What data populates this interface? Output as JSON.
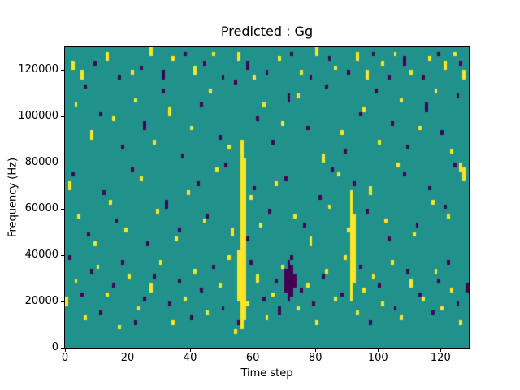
{
  "chart_data": {
    "type": "heatmap",
    "title": "Predicted : Gg",
    "xlabel": "Time step",
    "ylabel": "Frequency (Hz)",
    "x_range": [
      0,
      129
    ],
    "y_range": [
      0,
      130000
    ],
    "x_ticks": [
      0,
      20,
      40,
      60,
      80,
      100,
      120
    ],
    "y_ticks": [
      0,
      20000,
      40000,
      60000,
      80000,
      100000,
      120000
    ],
    "grid": {
      "cols": 129,
      "rows": 65,
      "cell_freq_hz": 2000,
      "gridlines": false,
      "legend": "none"
    },
    "colors": {
      "background_value_color": "#21918c",
      "high_value_color": "#fde725",
      "low_value_color": "#440154",
      "figure_bg": "#ffffff",
      "spine": "#000000"
    },
    "cells_note": "runs are [time_step, freq_bin_start, freq_bin_end] with freq bin = 2000 Hz, bin 0 at 0 Hz",
    "cells": {
      "yellow_runs": [
        [
          2,
          60,
          61
        ],
        [
          5,
          58,
          59
        ],
        [
          13,
          62,
          63
        ],
        [
          21,
          59,
          59
        ],
        [
          27,
          63,
          64
        ],
        [
          34,
          62,
          62
        ],
        [
          41,
          59,
          60
        ],
        [
          47,
          63,
          63
        ],
        [
          55,
          62,
          63
        ],
        [
          60,
          58,
          58
        ],
        [
          68,
          62,
          62
        ],
        [
          75,
          59,
          59
        ],
        [
          80,
          63,
          64
        ],
        [
          86,
          60,
          60
        ],
        [
          93,
          62,
          63
        ],
        [
          96,
          58,
          59
        ],
        [
          101,
          61,
          61
        ],
        [
          105,
          63,
          63
        ],
        [
          110,
          59,
          59
        ],
        [
          116,
          62,
          62
        ],
        [
          121,
          60,
          61
        ],
        [
          124,
          63,
          63
        ],
        [
          127,
          58,
          59
        ],
        [
          3,
          52,
          52
        ],
        [
          8,
          45,
          46
        ],
        [
          15,
          49,
          49
        ],
        [
          22,
          53,
          53
        ],
        [
          28,
          44,
          44
        ],
        [
          33,
          50,
          51
        ],
        [
          40,
          47,
          47
        ],
        [
          46,
          55,
          55
        ],
        [
          52,
          43,
          43
        ],
        [
          63,
          52,
          52
        ],
        [
          69,
          48,
          48
        ],
        [
          74,
          54,
          54
        ],
        [
          82,
          40,
          41
        ],
        [
          88,
          46,
          46
        ],
        [
          95,
          51,
          51
        ],
        [
          100,
          44,
          44
        ],
        [
          107,
          53,
          53
        ],
        [
          113,
          47,
          47
        ],
        [
          118,
          55,
          55
        ],
        [
          123,
          42,
          42
        ],
        [
          126,
          38,
          39
        ],
        [
          55,
          10,
          20
        ],
        [
          56,
          4,
          44
        ],
        [
          57,
          6,
          40
        ],
        [
          91,
          10,
          33
        ],
        [
          92,
          14,
          28
        ],
        [
          1,
          34,
          35
        ],
        [
          4,
          28,
          28
        ],
        [
          9,
          22,
          22
        ],
        [
          14,
          31,
          31
        ],
        [
          19,
          25,
          25
        ],
        [
          24,
          36,
          36
        ],
        [
          29,
          29,
          29
        ],
        [
          35,
          23,
          23
        ],
        [
          39,
          33,
          33
        ],
        [
          44,
          27,
          27
        ],
        [
          48,
          38,
          38
        ],
        [
          53,
          24,
          25
        ],
        [
          59,
          32,
          32
        ],
        [
          62,
          26,
          26
        ],
        [
          67,
          35,
          35
        ],
        [
          73,
          28,
          28
        ],
        [
          78,
          22,
          23
        ],
        [
          84,
          30,
          30
        ],
        [
          87,
          37,
          37
        ],
        [
          90,
          25,
          25
        ],
        [
          97,
          33,
          34
        ],
        [
          102,
          27,
          27
        ],
        [
          106,
          39,
          39
        ],
        [
          111,
          24,
          24
        ],
        [
          117,
          31,
          31
        ],
        [
          122,
          28,
          28
        ],
        [
          127,
          36,
          38
        ],
        [
          0,
          9,
          10
        ],
        [
          3,
          14,
          14
        ],
        [
          6,
          6,
          6
        ],
        [
          10,
          17,
          17
        ],
        [
          13,
          11,
          11
        ],
        [
          17,
          4,
          4
        ],
        [
          20,
          15,
          15
        ],
        [
          23,
          8,
          8
        ],
        [
          27,
          12,
          13
        ],
        [
          30,
          18,
          18
        ],
        [
          34,
          5,
          5
        ],
        [
          38,
          10,
          10
        ],
        [
          41,
          16,
          16
        ],
        [
          45,
          7,
          7
        ],
        [
          49,
          13,
          13
        ],
        [
          52,
          19,
          19
        ],
        [
          54,
          3,
          3
        ],
        [
          58,
          9,
          9
        ],
        [
          61,
          14,
          15
        ],
        [
          64,
          6,
          6
        ],
        [
          66,
          11,
          11
        ],
        [
          69,
          17,
          17
        ],
        [
          74,
          8,
          8
        ],
        [
          77,
          13,
          13
        ],
        [
          80,
          5,
          5
        ],
        [
          83,
          16,
          16
        ],
        [
          86,
          10,
          10
        ],
        [
          89,
          19,
          19
        ],
        [
          93,
          7,
          7
        ],
        [
          95,
          12,
          12
        ],
        [
          98,
          15,
          15
        ],
        [
          101,
          9,
          9
        ],
        [
          104,
          18,
          18
        ],
        [
          107,
          6,
          6
        ],
        [
          110,
          13,
          14
        ],
        [
          114,
          10,
          10
        ],
        [
          118,
          16,
          16
        ],
        [
          120,
          8,
          8
        ],
        [
          123,
          12,
          12
        ],
        [
          126,
          5,
          5
        ]
      ],
      "purple_runs": [
        [
          9,
          61,
          61
        ],
        [
          17,
          58,
          58
        ],
        [
          24,
          60,
          60
        ],
        [
          31,
          58,
          59
        ],
        [
          38,
          63,
          63
        ],
        [
          44,
          61,
          61
        ],
        [
          50,
          58,
          58
        ],
        [
          58,
          60,
          61
        ],
        [
          64,
          59,
          59
        ],
        [
          72,
          63,
          63
        ],
        [
          78,
          58,
          58
        ],
        [
          84,
          62,
          62
        ],
        [
          90,
          59,
          59
        ],
        [
          98,
          63,
          63
        ],
        [
          103,
          58,
          58
        ],
        [
          108,
          61,
          62
        ],
        [
          114,
          58,
          58
        ],
        [
          119,
          63,
          63
        ],
        [
          126,
          61,
          61
        ],
        [
          6,
          56,
          56
        ],
        [
          11,
          50,
          50
        ],
        [
          18,
          43,
          43
        ],
        [
          25,
          47,
          48
        ],
        [
          31,
          55,
          55
        ],
        [
          37,
          41,
          41
        ],
        [
          43,
          52,
          52
        ],
        [
          49,
          45,
          45
        ],
        [
          54,
          57,
          57
        ],
        [
          61,
          49,
          49
        ],
        [
          66,
          44,
          44
        ],
        [
          71,
          53,
          54
        ],
        [
          77,
          47,
          47
        ],
        [
          83,
          56,
          56
        ],
        [
          89,
          42,
          42
        ],
        [
          94,
          50,
          50
        ],
        [
          99,
          55,
          55
        ],
        [
          104,
          48,
          48
        ],
        [
          109,
          43,
          43
        ],
        [
          115,
          51,
          52
        ],
        [
          120,
          46,
          46
        ],
        [
          125,
          54,
          54
        ],
        [
          70,
          12,
          16
        ],
        [
          71,
          10,
          18
        ],
        [
          72,
          11,
          17
        ],
        [
          73,
          13,
          15
        ],
        [
          2,
          37,
          37
        ],
        [
          7,
          24,
          24
        ],
        [
          12,
          33,
          33
        ],
        [
          16,
          27,
          27
        ],
        [
          21,
          38,
          38
        ],
        [
          26,
          22,
          22
        ],
        [
          32,
          30,
          31
        ],
        [
          36,
          25,
          25
        ],
        [
          42,
          35,
          35
        ],
        [
          45,
          28,
          28
        ],
        [
          51,
          39,
          39
        ],
        [
          58,
          23,
          23
        ],
        [
          60,
          34,
          34
        ],
        [
          65,
          29,
          29
        ],
        [
          70,
          36,
          36
        ],
        [
          76,
          26,
          26
        ],
        [
          81,
          32,
          32
        ],
        [
          85,
          38,
          38
        ],
        [
          92,
          35,
          35
        ],
        [
          96,
          29,
          29
        ],
        [
          103,
          23,
          23
        ],
        [
          108,
          37,
          37
        ],
        [
          112,
          26,
          26
        ],
        [
          116,
          34,
          34
        ],
        [
          121,
          30,
          30
        ],
        [
          124,
          39,
          39
        ],
        [
          1,
          19,
          19
        ],
        [
          5,
          11,
          11
        ],
        [
          8,
          16,
          16
        ],
        [
          11,
          7,
          7
        ],
        [
          15,
          13,
          13
        ],
        [
          18,
          18,
          18
        ],
        [
          22,
          5,
          5
        ],
        [
          25,
          10,
          10
        ],
        [
          28,
          15,
          15
        ],
        [
          33,
          9,
          9
        ],
        [
          36,
          14,
          14
        ],
        [
          40,
          6,
          6
        ],
        [
          43,
          12,
          12
        ],
        [
          47,
          17,
          17
        ],
        [
          50,
          8,
          8
        ],
        [
          55,
          5,
          5
        ],
        [
          59,
          18,
          18
        ],
        [
          63,
          10,
          10
        ],
        [
          67,
          14,
          14
        ],
        [
          68,
          7,
          8
        ],
        [
          72,
          19,
          19
        ],
        [
          75,
          12,
          12
        ],
        [
          79,
          9,
          9
        ],
        [
          82,
          15,
          15
        ],
        [
          88,
          11,
          11
        ],
        [
          94,
          17,
          17
        ],
        [
          97,
          5,
          5
        ],
        [
          100,
          13,
          13
        ],
        [
          105,
          8,
          8
        ],
        [
          109,
          16,
          16
        ],
        [
          113,
          11,
          11
        ],
        [
          117,
          7,
          7
        ],
        [
          119,
          14,
          14
        ],
        [
          122,
          18,
          18
        ],
        [
          125,
          9,
          9
        ],
        [
          128,
          12,
          13
        ]
      ]
    }
  }
}
